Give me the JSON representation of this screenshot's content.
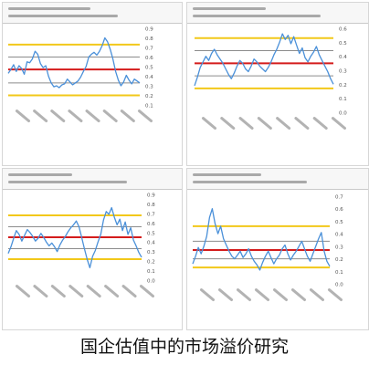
{
  "caption": "国企估值中的市场溢价研究",
  "colors": {
    "gold": "#f2c81a",
    "red": "#d41c1c",
    "gray": "#8c8c8c",
    "series": "#4a90d9"
  },
  "chart_data": [
    {
      "type": "line",
      "ylim": [
        0.1,
        0.9
      ],
      "yticks": [
        "0.9",
        "0.8",
        "0.7",
        "0.6",
        "0.5",
        "0.4",
        "0.3",
        "0.2",
        "0.1"
      ],
      "reference_lines": [
        {
          "value": 0.73,
          "color": "gold"
        },
        {
          "value": 0.6,
          "color": "gray"
        },
        {
          "value": 0.47,
          "color": "red"
        },
        {
          "value": 0.33,
          "color": "gray"
        },
        {
          "value": 0.2,
          "color": "gold"
        }
      ],
      "series": [
        {
          "values": [
            0.43,
            0.47,
            0.52,
            0.45,
            0.51,
            0.48,
            0.42,
            0.55,
            0.54,
            0.58,
            0.66,
            0.63,
            0.53,
            0.49,
            0.51,
            0.4,
            0.33,
            0.29,
            0.3,
            0.28,
            0.31,
            0.32,
            0.37,
            0.34,
            0.31,
            0.33,
            0.35,
            0.39,
            0.45,
            0.5,
            0.6,
            0.63,
            0.65,
            0.62,
            0.66,
            0.72,
            0.8,
            0.76,
            0.68,
            0.58,
            0.45,
            0.36,
            0.3,
            0.34,
            0.41,
            0.36,
            0.32,
            0.37,
            0.35,
            0.33
          ]
        }
      ]
    },
    {
      "type": "line",
      "ylim": [
        0.0,
        0.6
      ],
      "yticks": [
        "0.6",
        "0.5",
        "0.4",
        "0.3",
        "0.2",
        "0.1",
        "0.0"
      ],
      "reference_lines": [
        {
          "value": 0.53,
          "color": "gold"
        },
        {
          "value": 0.44,
          "color": "gray"
        },
        {
          "value": 0.35,
          "color": "red"
        },
        {
          "value": 0.26,
          "color": "gray"
        },
        {
          "value": 0.17,
          "color": "gold"
        }
      ],
      "series": [
        {
          "values": [
            0.19,
            0.25,
            0.32,
            0.36,
            0.4,
            0.37,
            0.42,
            0.45,
            0.41,
            0.38,
            0.35,
            0.31,
            0.27,
            0.24,
            0.28,
            0.33,
            0.37,
            0.35,
            0.31,
            0.29,
            0.33,
            0.38,
            0.36,
            0.33,
            0.31,
            0.29,
            0.32,
            0.36,
            0.41,
            0.45,
            0.5,
            0.56,
            0.52,
            0.55,
            0.49,
            0.54,
            0.48,
            0.42,
            0.46,
            0.39,
            0.36,
            0.4,
            0.43,
            0.47,
            0.41,
            0.37,
            0.33,
            0.29,
            0.24,
            0.2
          ]
        }
      ]
    },
    {
      "type": "line",
      "ylim": [
        0.0,
        0.9
      ],
      "yticks": [
        "0.9",
        "0.8",
        "0.7",
        "0.6",
        "0.5",
        "0.4",
        "0.3",
        "0.2",
        "0.1",
        "0.0"
      ],
      "reference_lines": [
        {
          "value": 0.68,
          "color": "gold"
        },
        {
          "value": 0.56,
          "color": "gray"
        },
        {
          "value": 0.45,
          "color": "red"
        },
        {
          "value": 0.33,
          "color": "gray"
        },
        {
          "value": 0.22,
          "color": "gold"
        }
      ],
      "series": [
        {
          "values": [
            0.28,
            0.35,
            0.44,
            0.52,
            0.48,
            0.41,
            0.47,
            0.53,
            0.5,
            0.46,
            0.41,
            0.44,
            0.49,
            0.45,
            0.4,
            0.36,
            0.39,
            0.35,
            0.3,
            0.37,
            0.42,
            0.46,
            0.51,
            0.55,
            0.58,
            0.62,
            0.56,
            0.45,
            0.33,
            0.22,
            0.13,
            0.25,
            0.31,
            0.4,
            0.48,
            0.63,
            0.72,
            0.69,
            0.76,
            0.66,
            0.58,
            0.64,
            0.52,
            0.61,
            0.48,
            0.55,
            0.42,
            0.36,
            0.29,
            0.24
          ]
        }
      ]
    },
    {
      "type": "line",
      "ylim": [
        0.0,
        0.7
      ],
      "yticks": [
        "0.7",
        "0.6",
        "0.5",
        "0.4",
        "0.3",
        "0.2",
        "0.1",
        "0.0"
      ],
      "reference_lines": [
        {
          "value": 0.46,
          "color": "gold"
        },
        {
          "value": 0.34,
          "color": "gray"
        },
        {
          "value": 0.27,
          "color": "red"
        },
        {
          "value": 0.2,
          "color": "gray"
        },
        {
          "value": 0.13,
          "color": "gold"
        }
      ],
      "series": [
        {
          "values": [
            0.16,
            0.22,
            0.29,
            0.24,
            0.3,
            0.38,
            0.53,
            0.6,
            0.48,
            0.4,
            0.46,
            0.36,
            0.31,
            0.26,
            0.22,
            0.2,
            0.23,
            0.26,
            0.21,
            0.24,
            0.28,
            0.22,
            0.18,
            0.15,
            0.11,
            0.17,
            0.22,
            0.26,
            0.21,
            0.16,
            0.2,
            0.23,
            0.28,
            0.31,
            0.24,
            0.19,
            0.23,
            0.26,
            0.3,
            0.34,
            0.28,
            0.22,
            0.18,
            0.24,
            0.3,
            0.36,
            0.41,
            0.26,
            0.18,
            0.14
          ]
        }
      ]
    }
  ]
}
